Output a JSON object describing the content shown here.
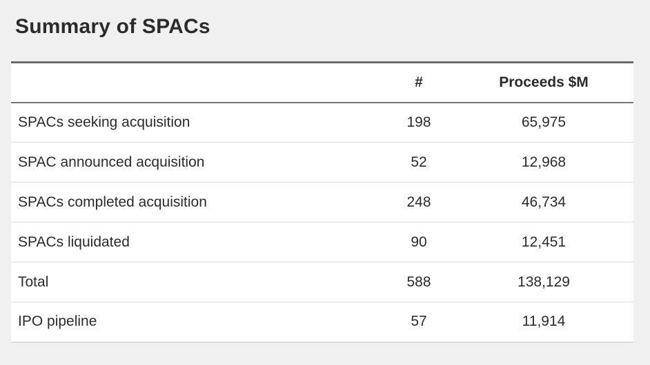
{
  "title": "Summary of SPACs",
  "colors": {
    "background": "#f0f0f0",
    "panel": "#ffffff",
    "text": "#2b2b2b",
    "border_dark": "#6b6b6b",
    "border_light": "#dcdcdc"
  },
  "table": {
    "columns": [
      "",
      "#",
      "Proceeds $M"
    ],
    "rows": [
      {
        "label": "SPACs seeking acquisition",
        "count": "198",
        "proceeds": "65,975"
      },
      {
        "label": "SPAC announced acquisition",
        "count": "52",
        "proceeds": "12,968"
      },
      {
        "label": "SPACs completed acquisition",
        "count": "248",
        "proceeds": "46,734"
      },
      {
        "label": "SPACs liquidated",
        "count": "90",
        "proceeds": "12,451"
      },
      {
        "label": "Total",
        "count": "588",
        "proceeds": "138,129"
      },
      {
        "label": "IPO pipeline",
        "count": "57",
        "proceeds": "11,914"
      }
    ]
  },
  "chart_data": {
    "type": "table",
    "title": "Summary of SPACs",
    "columns": [
      "",
      "#",
      "Proceeds $M"
    ],
    "rows": [
      [
        "SPACs seeking acquisition",
        198,
        65975
      ],
      [
        "SPAC announced acquisition",
        52,
        12968
      ],
      [
        "SPACs completed acquisition",
        248,
        46734
      ],
      [
        "SPACs liquidated",
        90,
        12451
      ],
      [
        "Total",
        588,
        138129
      ],
      [
        "IPO pipeline",
        57,
        11914
      ]
    ]
  }
}
